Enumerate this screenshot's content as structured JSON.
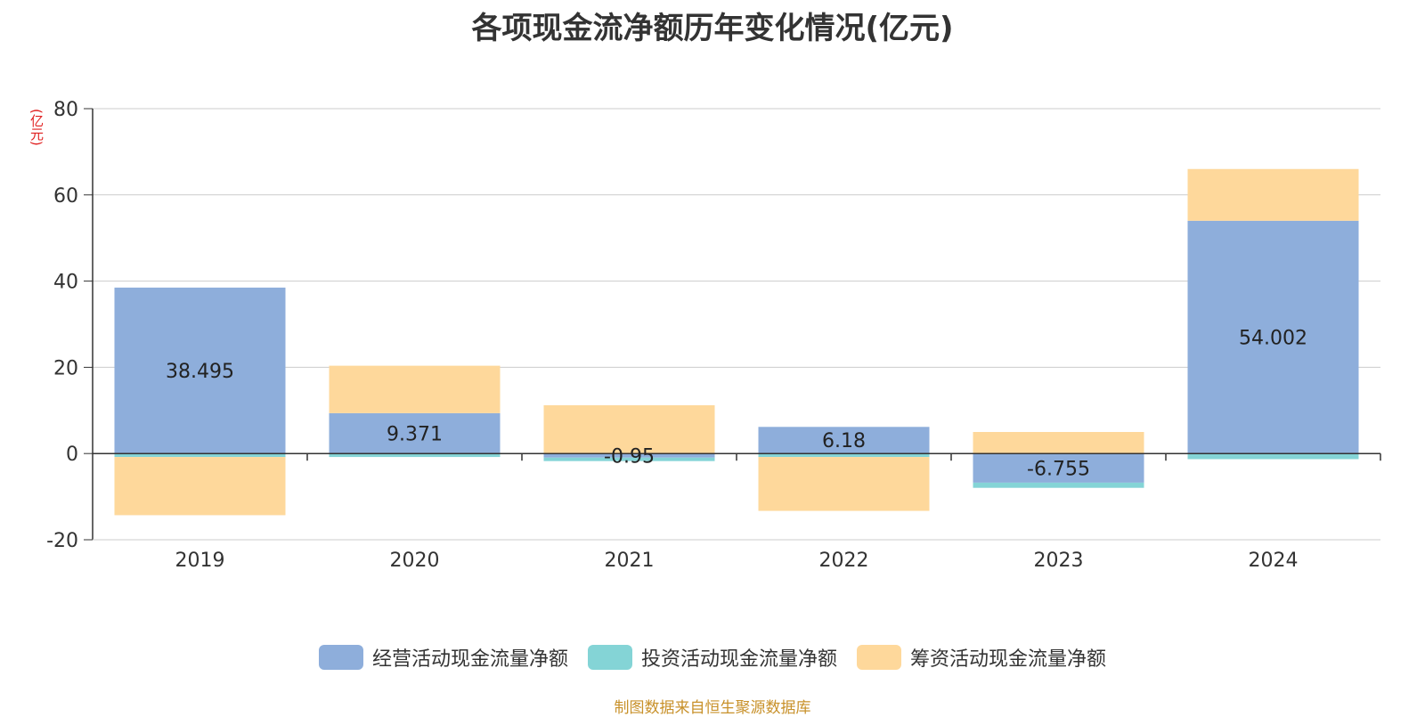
{
  "chart_data": {
    "type": "bar",
    "stacked": true,
    "title": "各项现金流净额历年变化情况(亿元)",
    "ylabel": "(亿元)",
    "xlabel": "",
    "ylim": [
      -20,
      80
    ],
    "yticks": [
      -20,
      0,
      20,
      40,
      60,
      80
    ],
    "grid": true,
    "legend_position": "bottom",
    "categories": [
      "2019",
      "2020",
      "2021",
      "2022",
      "2023",
      "2024"
    ],
    "series": [
      {
        "name": "经营活动现金流量净额",
        "color": "#8eaedb",
        "values": [
          38.495,
          9.371,
          -0.95,
          6.18,
          -6.755,
          54.002
        ],
        "labels": [
          "38.495",
          "9.371",
          "-0.95",
          "6.18",
          "-6.755",
          "54.002"
        ]
      },
      {
        "name": "投资活动现金流量净额",
        "color": "#84d4d6",
        "values": [
          -0.8,
          -0.8,
          -0.8,
          -0.8,
          -1.2,
          -1.3
        ]
      },
      {
        "name": "筹资活动现金流量净额",
        "color": "#fed89b",
        "values": [
          -13.5,
          11.0,
          11.2,
          -12.5,
          5.0,
          12.0
        ]
      }
    ],
    "source": "制图数据来自恒生聚源数据库"
  }
}
